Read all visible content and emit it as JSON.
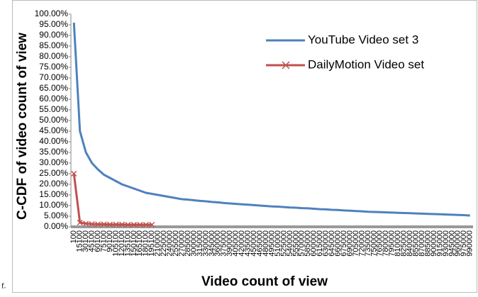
{
  "chart_data": {
    "type": "line",
    "y_label": "C-CDF of video count of view",
    "x_label": "Video count of view",
    "footnote": "f.",
    "legend": "top-right",
    "ylim": [
      0,
      100
    ],
    "yticks": [
      {
        "value": 0,
        "label": "0.00%"
      },
      {
        "value": 5,
        "label": "5.00%"
      },
      {
        "value": 10,
        "label": "10.00%"
      },
      {
        "value": 15,
        "label": "15.00%"
      },
      {
        "value": 20,
        "label": "20.00%"
      },
      {
        "value": 25,
        "label": "25.00%"
      },
      {
        "value": 30,
        "label": "30.00%"
      },
      {
        "value": 35,
        "label": "35.00%"
      },
      {
        "value": 40,
        "label": "40.00%"
      },
      {
        "value": 45,
        "label": "45.00%"
      },
      {
        "value": 50,
        "label": "50.00%"
      },
      {
        "value": 55,
        "label": "55.00%"
      },
      {
        "value": 60,
        "label": "60.00%"
      },
      {
        "value": 65,
        "label": "65.00%"
      },
      {
        "value": 70,
        "label": "70.00%"
      },
      {
        "value": 75,
        "label": "75.00%"
      },
      {
        "value": 80,
        "label": "80.00%"
      },
      {
        "value": 85,
        "label": "85.00%"
      },
      {
        "value": 90,
        "label": "90.00%"
      },
      {
        "value": 95,
        "label": "95.00%"
      },
      {
        "value": 100,
        "label": "100.00%"
      }
    ],
    "categories": [
      "100",
      "15100",
      "30100",
      "45100",
      "60100",
      "75100",
      "90100",
      "105100",
      "120100",
      "135100",
      "150100",
      "165100",
      "180100",
      "195100",
      "210000",
      "225000",
      "240000",
      "255000",
      "270000",
      "285000",
      "300000",
      "315000",
      "330000",
      "345000",
      "360000",
      "375000",
      "390000",
      "405000",
      "420000",
      "435000",
      "450000",
      "465000",
      "480000",
      "495000",
      "510000",
      "525000",
      "540000",
      "555000",
      "570000",
      "585000",
      "600000",
      "615000",
      "630000",
      "645000",
      "660000",
      "675000",
      "690000",
      "705000",
      "720000",
      "735000",
      "750000",
      "765000",
      "780000",
      "795000",
      "810000",
      "825000",
      "840000",
      "855000",
      "870000",
      "885000",
      "900000",
      "915000",
      "930000",
      "945000",
      "960000",
      "975000",
      "990000"
    ],
    "series": [
      {
        "name": "YouTube Video set 3",
        "color": "#4f81bd",
        "marker": "none",
        "values": [
          96,
          45,
          35,
          30,
          27,
          24.5,
          23,
          21.5,
          20,
          19,
          18,
          17,
          16,
          15.5,
          15,
          14.5,
          14,
          13.5,
          13,
          12.8,
          12.5,
          12.2,
          12,
          11.7,
          11.5,
          11.2,
          11,
          10.8,
          10.6,
          10.4,
          10.2,
          10,
          9.8,
          9.6,
          9.5,
          9.3,
          9.1,
          9,
          8.8,
          8.7,
          8.5,
          8.3,
          8.2,
          8,
          7.9,
          7.7,
          7.6,
          7.4,
          7.3,
          7.1,
          7,
          6.9,
          6.8,
          6.7,
          6.6,
          6.5,
          6.4,
          6.3,
          6.2,
          6.1,
          6,
          5.9,
          5.8,
          5.7,
          5.6,
          5.5,
          5.3
        ]
      },
      {
        "name": "DailyMotion Video set",
        "color": "#c0504d",
        "marker": "x",
        "values": [
          25,
          2,
          1.5,
          1.3,
          1.2,
          1.2,
          1.1,
          1.1,
          1.1,
          1,
          1,
          1,
          1,
          1,
          null,
          null,
          null,
          null,
          null,
          null,
          null,
          null,
          null,
          null,
          null,
          null,
          null,
          null,
          null,
          null,
          null,
          null,
          null,
          null,
          null,
          null,
          null,
          null,
          null,
          null,
          null,
          null,
          null,
          null,
          null,
          null,
          null,
          null,
          null,
          null,
          null,
          null,
          null,
          null,
          null,
          null,
          null,
          null,
          null,
          null,
          null,
          null,
          null,
          null,
          null,
          null,
          null
        ]
      }
    ]
  }
}
